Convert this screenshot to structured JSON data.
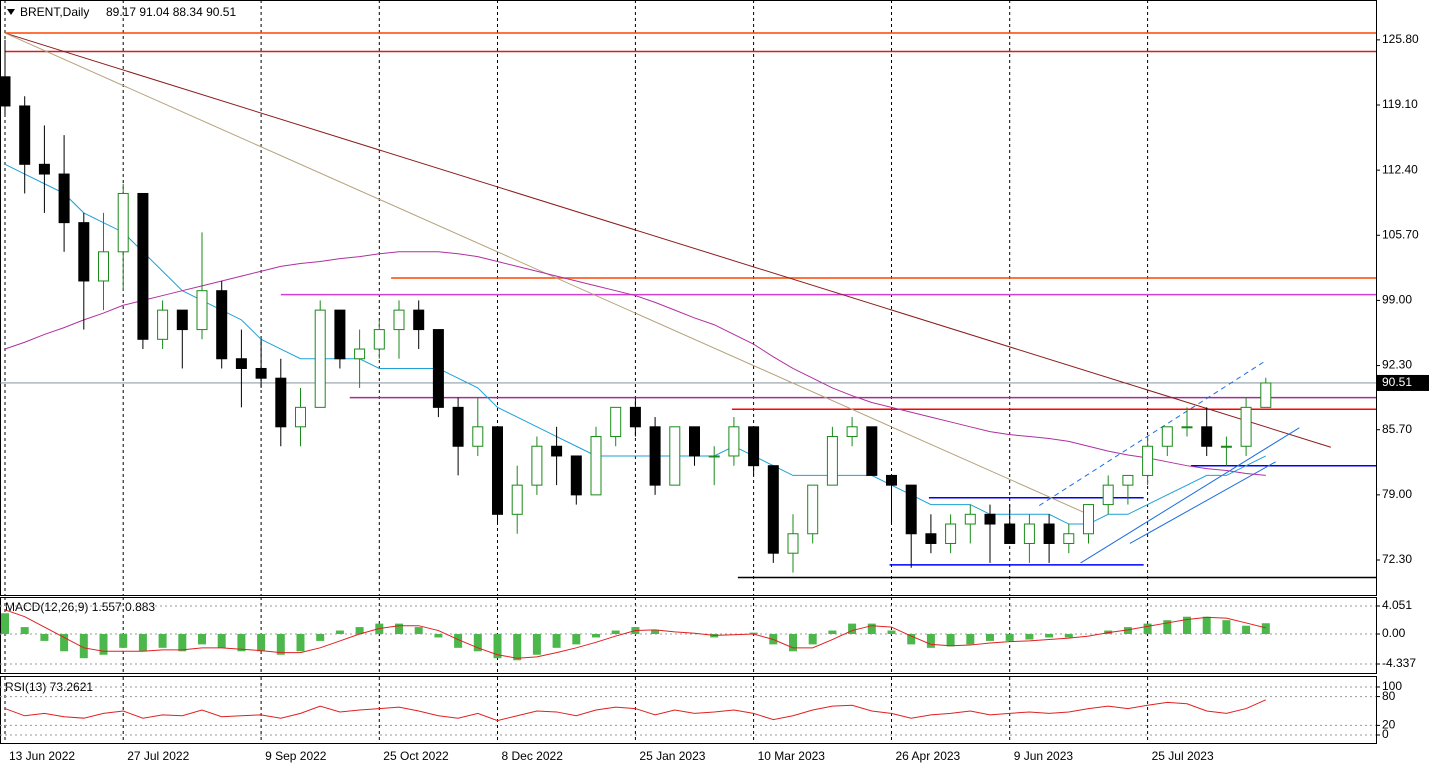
{
  "chart_data": [
    {
      "type": "candlestick",
      "title": "BRENT,Daily",
      "subtitle": "89.17 91.04 88.34 90.51",
      "categories": [
        "13 Jun 2022",
        null,
        null,
        null,
        null,
        null,
        "27 Jul 2022",
        null,
        null,
        null,
        null,
        null,
        null,
        "9 Sep 2022",
        null,
        null,
        null,
        null,
        null,
        "25 Oct 2022",
        null,
        null,
        null,
        null,
        null,
        "8 Dec 2022",
        null,
        null,
        null,
        null,
        null,
        null,
        "25 Jan 2023",
        null,
        null,
        null,
        null,
        null,
        "10 Mar 2023",
        null,
        null,
        null,
        null,
        null,
        null,
        "26 Apr 2023",
        null,
        null,
        null,
        null,
        null,
        "9 Jun 2023",
        null,
        null,
        null,
        null,
        null,
        null,
        "25 Jul 2023",
        null,
        null,
        null,
        null,
        null,
        null
      ],
      "open": [
        122,
        119,
        113,
        112,
        107,
        101,
        104,
        110,
        95,
        98,
        96,
        100,
        93,
        92,
        91,
        86,
        88,
        98,
        93,
        94,
        96,
        98,
        96,
        88,
        84,
        86,
        77,
        80,
        84,
        83,
        79,
        85,
        88,
        86,
        80,
        86,
        83,
        83,
        86,
        82,
        73,
        75,
        80,
        85,
        86,
        81,
        80,
        75,
        74,
        76,
        77,
        76,
        74,
        76,
        74,
        75,
        78,
        80,
        81,
        84,
        86,
        86,
        84,
        84,
        88
      ],
      "high": [
        125.8,
        120,
        117,
        116,
        108,
        108,
        111,
        110,
        99,
        98,
        106,
        101,
        96,
        95,
        93,
        90,
        99,
        98,
        96,
        97,
        99,
        99,
        96,
        89,
        89,
        86,
        82,
        85,
        86,
        83,
        86,
        88,
        89,
        87,
        86,
        86,
        84,
        87,
        86,
        82,
        77,
        80,
        86,
        87,
        86,
        81,
        80,
        77,
        77,
        78,
        78,
        78,
        77,
        77,
        76,
        78,
        81,
        81,
        85,
        86,
        88,
        88,
        85,
        89,
        91.04
      ],
      "low": [
        118,
        110,
        108,
        104,
        96,
        98,
        100,
        94,
        94,
        92,
        95,
        92,
        88,
        90,
        84,
        84,
        88,
        92,
        90,
        93,
        93,
        94,
        87,
        81,
        83,
        76,
        75,
        79,
        80,
        78,
        79,
        84,
        85,
        79,
        80,
        82,
        80,
        82,
        81,
        72,
        71,
        74,
        80,
        84,
        81,
        76,
        71.5,
        73,
        73,
        74,
        72,
        74,
        72,
        72,
        73,
        74,
        77,
        78,
        80,
        83,
        85,
        83,
        82,
        83,
        88
      ],
      "close": [
        119,
        113,
        112,
        107,
        101,
        104,
        110,
        95,
        98,
        96,
        100,
        93,
        92,
        91,
        86,
        88,
        98,
        93,
        94,
        96,
        98,
        96,
        88,
        84,
        86,
        77,
        80,
        84,
        83,
        79,
        85,
        88,
        86,
        80,
        86,
        83,
        83,
        86,
        82,
        73,
        75,
        80,
        85,
        86,
        81,
        80,
        75,
        74,
        76,
        77,
        76,
        74,
        76,
        74,
        75,
        78,
        80,
        81,
        84,
        86,
        86,
        84,
        84,
        88,
        90.51
      ],
      "up_color": "#1a8a1a",
      "down_color": "#000000",
      "lines": [
        {
          "color": "#1ea0d8",
          "values": [
            113,
            112,
            111,
            110,
            108,
            107,
            106,
            104,
            102,
            100,
            99,
            98,
            97,
            95,
            94,
            93,
            93,
            93,
            93,
            92,
            92,
            92,
            92,
            91,
            90,
            88,
            87,
            86,
            85,
            84,
            83,
            83,
            83,
            83,
            83,
            83,
            83,
            84,
            83,
            82,
            81,
            81,
            81,
            81,
            81,
            80,
            79,
            78,
            78,
            78,
            77,
            77,
            77,
            77,
            76,
            76,
            77,
            77,
            78,
            79,
            80,
            81,
            81,
            82,
            83
          ]
        },
        {
          "color": "#b0309f",
          "values": [
            94,
            94.7,
            95.5,
            96.2,
            97,
            97.7,
            98.5,
            99,
            99.5,
            100,
            100.5,
            101,
            101.5,
            102,
            102.5,
            102.8,
            103,
            103.3,
            103.5,
            103.8,
            104,
            104,
            104,
            103.8,
            103.5,
            103,
            102.5,
            102,
            101.5,
            101,
            100.5,
            100,
            99.5,
            98.8,
            98,
            97.2,
            96.5,
            95.5,
            94.5,
            93.2,
            92,
            91,
            90,
            89.2,
            88.5,
            88,
            87.5,
            87,
            86.5,
            86,
            85.5,
            85.2,
            85,
            84.8,
            84.5,
            84,
            83.5,
            83.1,
            82.8,
            82.4,
            82,
            81.7,
            81.5,
            81.2,
            81
          ]
        }
      ],
      "hlines": [
        {
          "value": 126.5,
          "color": "#ff4500",
          "from": 0
        },
        {
          "value": 124.6,
          "color": "#d02020",
          "from": 0
        },
        {
          "value": 101.3,
          "color": "#ff4500",
          "from": 19.6
        },
        {
          "value": 99.6,
          "color": "#d040d0",
          "from": 14
        },
        {
          "value": 89.0,
          "color": "#a0308f",
          "from": 17.5
        },
        {
          "value": 87.8,
          "color": "#ff0000",
          "from": 36.9
        },
        {
          "value": 82.0,
          "color": "#0000ff",
          "from": 60.2
        },
        {
          "value": 78.7,
          "color": "#0000ff",
          "from": 46.9,
          "to": 57.8
        },
        {
          "value": 71.8,
          "color": "#0000ff",
          "from": 44.9,
          "to": 57.8
        },
        {
          "value": 70.5,
          "color": "#000000",
          "from": 37.2
        }
      ],
      "trendlines": [
        {
          "color": "#8b1a1a",
          "points": [
            [
              0,
              126.5
            ],
            [
              67.3,
              83.9
            ]
          ]
        },
        {
          "color": "#b5a27a",
          "points": [
            [
              0,
              126.5
            ],
            [
              55.1,
              76.9
            ]
          ]
        },
        {
          "color": "#1e6ee0",
          "points": [
            [
              54.6,
              72.0
            ],
            [
              65.7,
              85.9
            ]
          ]
        },
        {
          "color": "#1e6ee0",
          "points": [
            [
              57.1,
              74.0
            ],
            [
              64.5,
              82.4
            ]
          ]
        },
        {
          "color": "#1e6ee0",
          "points": [
            [
              52.5,
              77.9
            ],
            [
              64,
              92.8
            ]
          ],
          "dashed": true
        }
      ],
      "last_price": 90.51,
      "ylim": [
        68.7,
        129.9
      ],
      "yticks": [
        {
          "value": 125.8,
          "label": "125.80"
        },
        {
          "value": 119.1,
          "label": "119.10"
        },
        {
          "value": 112.4,
          "label": "112.40"
        },
        {
          "value": 105.7,
          "label": "105.70"
        },
        {
          "value": 99,
          "label": "99.00"
        },
        {
          "value": 92.3,
          "label": "92.30"
        },
        {
          "value": 85.7,
          "label": "85.70"
        },
        {
          "value": 79,
          "label": "79.00"
        },
        {
          "value": 72.3,
          "label": "72.30"
        }
      ]
    },
    {
      "type": "macd",
      "title": "MACD(12,26,9) 1.557 0.883",
      "values": [
        3,
        1,
        -1,
        -2.5,
        -3.5,
        -3,
        -2,
        -2.5,
        -2,
        -2.5,
        -1.5,
        -2,
        -2.5,
        -2.5,
        -3,
        -2.5,
        -1,
        0.5,
        1,
        1.5,
        1.5,
        1,
        -0.5,
        -2,
        -2.5,
        -3.5,
        -3.8,
        -3,
        -2,
        -1.5,
        -0.5,
        0.5,
        1,
        0.5,
        0,
        0,
        -0.5,
        0,
        0.2,
        -1.5,
        -2.5,
        -1.5,
        0.5,
        1.5,
        1.5,
        0.5,
        -1.5,
        -2,
        -1.8,
        -1.5,
        -1,
        -1,
        -0.8,
        -0.5,
        -0.5,
        0,
        0.5,
        1,
        1.5,
        2,
        2.5,
        2.5,
        2,
        1.2,
        1.557
      ],
      "color": "#4cb84c",
      "signal": {
        "color": "#e02020",
        "values": [
          3.5,
          2.5,
          1,
          -0.5,
          -2,
          -2.5,
          -2.5,
          -2.5,
          -2.3,
          -2.3,
          -2,
          -2,
          -2.2,
          -2.4,
          -2.7,
          -2.7,
          -2,
          -1,
          0,
          0.8,
          1.2,
          1.2,
          0.5,
          -0.8,
          -2,
          -3,
          -3.5,
          -3.3,
          -2.7,
          -2,
          -1.2,
          -0.3,
          0.5,
          0.6,
          0.3,
          0.1,
          -0.2,
          -0.1,
          0,
          -0.8,
          -2,
          -2,
          -0.8,
          0.5,
          1.2,
          1,
          -0.3,
          -1.5,
          -1.7,
          -1.6,
          -1.3,
          -1.1,
          -1,
          -0.8,
          -0.6,
          -0.3,
          0.2,
          0.6,
          1.1,
          1.6,
          2.1,
          2.4,
          2.3,
          1.6,
          0.883
        ]
      },
      "ylim": [
        -5.64,
        5.35
      ],
      "yticks": [
        4.051,
        {
          "value": 0,
          "label": "0.00"
        },
        -4.337
      ]
    },
    {
      "type": "line",
      "title": "RSI(13) 73.2621",
      "values": [
        55,
        40,
        45,
        38,
        35,
        45,
        50,
        35,
        42,
        40,
        52,
        38,
        40,
        42,
        35,
        45,
        60,
        48,
        52,
        55,
        58,
        50,
        40,
        35,
        45,
        30,
        40,
        50,
        48,
        40,
        52,
        58,
        55,
        42,
        52,
        45,
        48,
        52,
        45,
        32,
        40,
        52,
        60,
        62,
        50,
        45,
        35,
        42,
        45,
        50,
        42,
        45,
        48,
        45,
        48,
        55,
        60,
        55,
        62,
        68,
        65,
        50,
        45,
        55,
        73.2621
      ],
      "color": "#e02020",
      "ylim": [
        -16.7,
        120.8
      ],
      "yticks": [
        100,
        80,
        20,
        0
      ]
    }
  ]
}
